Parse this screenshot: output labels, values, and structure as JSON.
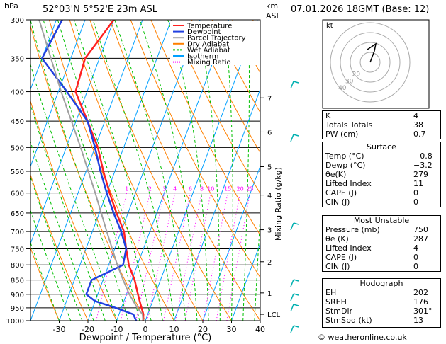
{
  "header": {
    "hpa_label": "hPa",
    "location": "52°03'N 5°52'E 23m ASL",
    "km_label": "km",
    "asl_label": "ASL",
    "datetime": "07.01.2026 18GMT (Base: 12)"
  },
  "chart_data": {
    "type": "line",
    "title": "Skew-T log-P diagram",
    "xlabel": "Dewpoint / Temperature (°C)",
    "ylabel": "hPa",
    "xlim": [
      -40,
      40
    ],
    "ylim": [
      1000,
      300
    ],
    "pressure_ticks": [
      "300",
      "350",
      "400",
      "450",
      "500",
      "550",
      "600",
      "650",
      "700",
      "750",
      "800",
      "850",
      "900",
      "950",
      "1000"
    ],
    "temp_ticks": [
      "-30",
      "-20",
      "-10",
      "0",
      "10",
      "20",
      "30",
      "40"
    ],
    "km_ticks": [
      {
        "label": "7",
        "p": 410
      },
      {
        "label": "6",
        "p": 470
      },
      {
        "label": "5",
        "p": 540
      },
      {
        "label": "4",
        "p": 605
      },
      {
        "label": "3",
        "p": 695
      },
      {
        "label": "2",
        "p": 790
      },
      {
        "label": "1",
        "p": 895
      },
      {
        "label": "LCL",
        "p": 975
      }
    ],
    "mixing_ratio_label": "Mixing Ratio (g/kg)",
    "mixing_ratio_values": [
      "1",
      "2",
      "3",
      "4",
      "6",
      "8",
      "10",
      "15",
      "20",
      "25"
    ],
    "legend": [
      {
        "name": "Temperature",
        "color": "#ff2020"
      },
      {
        "name": "Dewpoint",
        "color": "#2040e0"
      },
      {
        "name": "Parcel Trajectory",
        "color": "#a0a0a0"
      },
      {
        "name": "Dry Adiabat",
        "color": "#ff8000"
      },
      {
        "name": "Wet Adiabat",
        "color": "#00c000"
      },
      {
        "name": "Isotherm",
        "color": "#00a0ff"
      },
      {
        "name": "Mixing Ratio",
        "color": "#ff00ff"
      }
    ],
    "series": [
      {
        "name": "Temperature",
        "points": [
          [
            1000,
            -0.8
          ],
          [
            975,
            -1.5
          ],
          [
            950,
            -3
          ],
          [
            925,
            -4.5
          ],
          [
            900,
            -6
          ],
          [
            850,
            -9
          ],
          [
            800,
            -13
          ],
          [
            750,
            -16
          ],
          [
            700,
            -19
          ],
          [
            650,
            -24
          ],
          [
            600,
            -29
          ],
          [
            550,
            -34
          ],
          [
            500,
            -39
          ],
          [
            450,
            -46
          ],
          [
            400,
            -54
          ],
          [
            350,
            -55
          ],
          [
            300,
            -50
          ]
        ]
      },
      {
        "name": "Dewpoint",
        "points": [
          [
            1000,
            -3.2
          ],
          [
            975,
            -5
          ],
          [
            950,
            -12
          ],
          [
            925,
            -20
          ],
          [
            900,
            -24
          ],
          [
            850,
            -24
          ],
          [
            800,
            -15
          ],
          [
            750,
            -16
          ],
          [
            700,
            -20
          ],
          [
            650,
            -25
          ],
          [
            600,
            -30
          ],
          [
            550,
            -35
          ],
          [
            500,
            -40
          ],
          [
            450,
            -46
          ],
          [
            400,
            -57
          ],
          [
            350,
            -70
          ],
          [
            300,
            -68
          ]
        ]
      },
      {
        "name": "Parcel Trajectory",
        "points": [
          [
            1000,
            -0.8
          ],
          [
            975,
            -1.8
          ],
          [
            950,
            -4.5
          ],
          [
            900,
            -9
          ],
          [
            850,
            -13
          ],
          [
            800,
            -17
          ],
          [
            700,
            -25
          ],
          [
            600,
            -34
          ],
          [
            500,
            -45
          ],
          [
            400,
            -59
          ],
          [
            300,
            -76
          ]
        ]
      }
    ]
  },
  "hodograph": {
    "label": "kt",
    "rings": [
      "10",
      "20",
      "30",
      "40"
    ]
  },
  "indices": [
    {
      "label": "K",
      "value": "4"
    },
    {
      "label": "Totals Totals",
      "value": "38"
    },
    {
      "label": "PW (cm)",
      "value": "0.7"
    }
  ],
  "surface": {
    "title": "Surface",
    "rows": [
      {
        "label": "Temp (°C)",
        "value": "−0.8"
      },
      {
        "label": "Dewp (°C)",
        "value": "−3.2"
      },
      {
        "label": "θe(K)",
        "value": "279"
      },
      {
        "label": "Lifted Index",
        "value": "11"
      },
      {
        "label": "CAPE (J)",
        "value": "0"
      },
      {
        "label": "CIN (J)",
        "value": "0"
      }
    ]
  },
  "unstable": {
    "title": "Most Unstable",
    "rows": [
      {
        "label": "Pressure (mb)",
        "value": "750"
      },
      {
        "label": "θe (K)",
        "value": "287"
      },
      {
        "label": "Lifted Index",
        "value": "4"
      },
      {
        "label": "CAPE (J)",
        "value": "0"
      },
      {
        "label": "CIN (J)",
        "value": "0"
      }
    ]
  },
  "hodo_table": {
    "title": "Hodograph",
    "rows": [
      {
        "label": "EH",
        "value": "202"
      },
      {
        "label": "SREH",
        "value": "176"
      },
      {
        "label": "StmDir",
        "value": "301°"
      },
      {
        "label": "StmSpd (kt)",
        "value": "13"
      }
    ]
  },
  "credit": "© weatheronline.co.uk",
  "colors": {
    "temp": "#ff2020",
    "dew": "#2040e0",
    "parcel": "#a0a0a0",
    "dry": "#ff8000",
    "wet": "#00c000",
    "iso": "#00a0ff",
    "mix": "#ff00ff",
    "wind": "#00b0b0"
  }
}
